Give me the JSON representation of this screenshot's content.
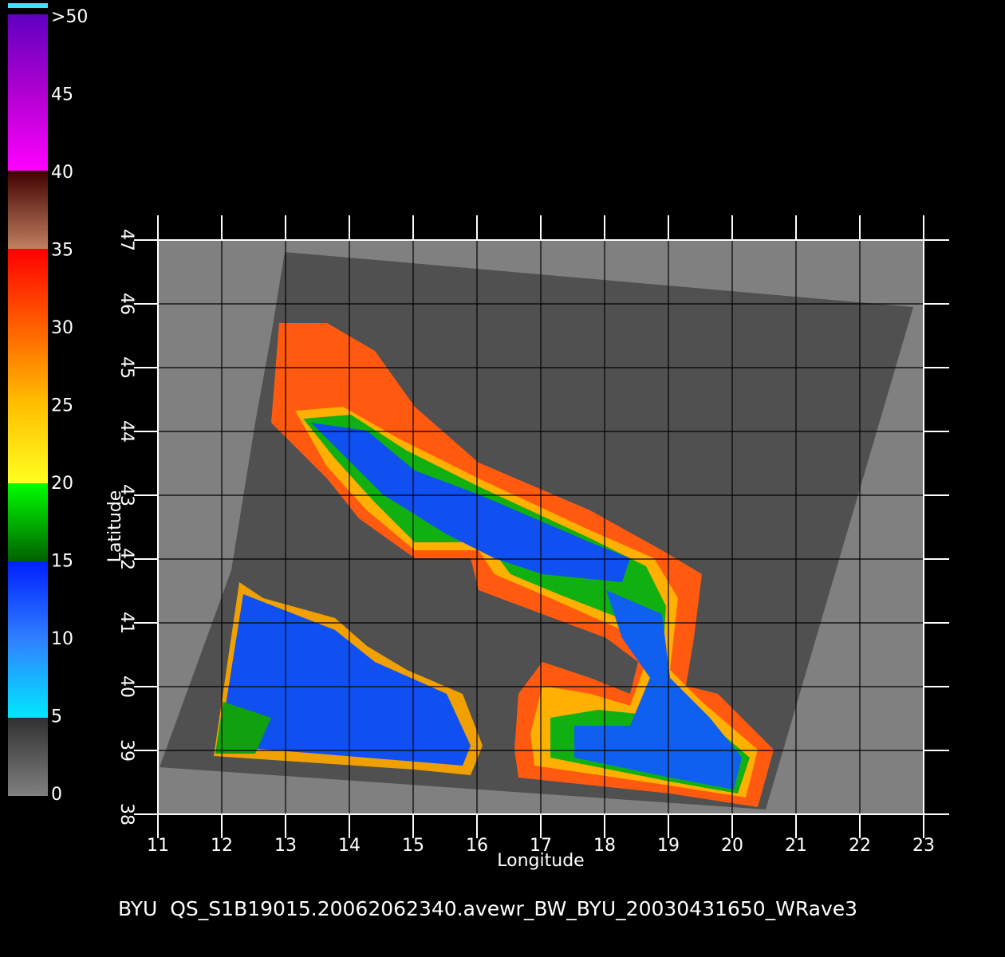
{
  "colorbar": {
    "lim": [
      0,
      50
    ],
    "ticks": [
      0,
      5,
      10,
      15,
      20,
      25,
      30,
      35,
      40,
      45,
      {
        "value": 50,
        "label": ">50"
      }
    ]
  },
  "map": {
    "xlabel": "Longitude",
    "ylabel": "Latitude",
    "xlim": [
      11,
      23
    ],
    "ylim": [
      38,
      47
    ],
    "xticks": [
      11,
      12,
      13,
      14,
      15,
      16,
      17,
      18,
      19,
      20,
      21,
      22,
      23
    ],
    "yticks": [
      38,
      39,
      40,
      41,
      42,
      43,
      44,
      45,
      46,
      47
    ]
  },
  "caption": "BYU  QS_S1B19015.20062062340.avewr_BW_BYU_20030431650_WRave3"
}
